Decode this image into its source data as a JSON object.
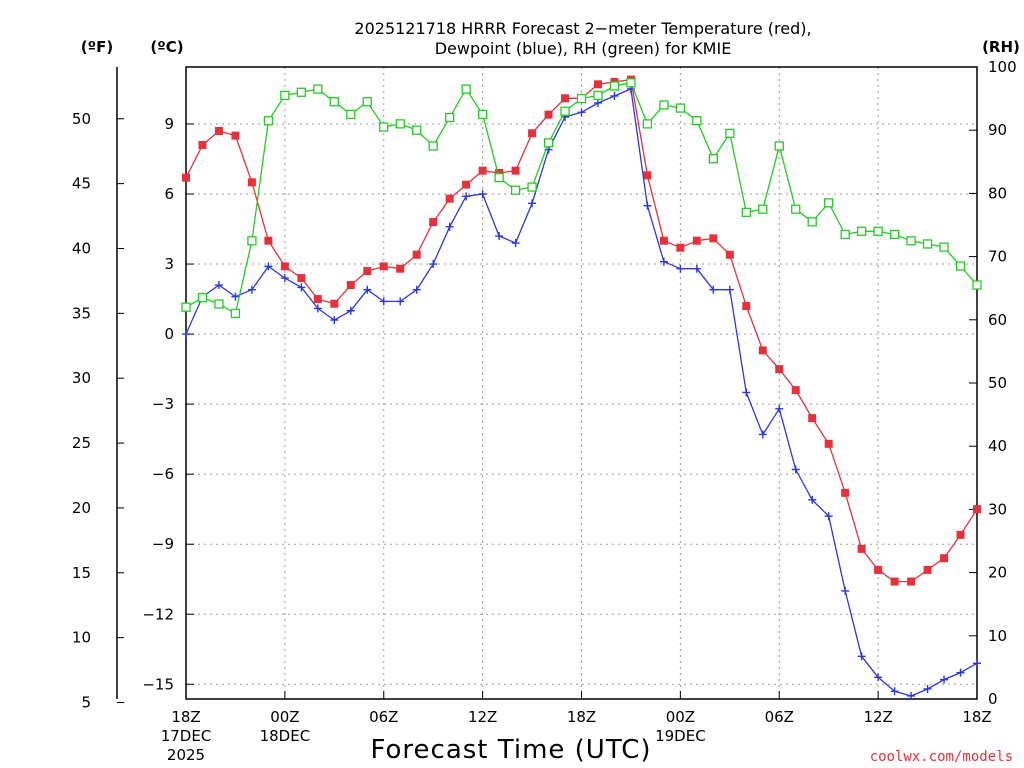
{
  "chart_data": {
    "type": "line",
    "title_lines": [
      "2025121718 HRRR Forecast 2−meter Temperature (red),",
      "Dewpoint (blue), RH (green) for KMIE"
    ],
    "xlabel": "Forecast Time (UTC)",
    "left_outer_axis": {
      "unit": "(ºF)",
      "ticks": [
        5,
        10,
        15,
        20,
        25,
        30,
        35,
        40,
        45,
        50
      ],
      "ylim": [
        5.27,
        53.99
      ]
    },
    "left_inner_axis": {
      "unit": "(ºC)",
      "ticks": [
        -15,
        -12,
        -9,
        -6,
        -3,
        0,
        3,
        6,
        9
      ],
      "tick_labels": [
        "−15",
        "−12",
        "−9",
        "−6",
        "−3",
        "0",
        "3",
        "6",
        "9"
      ],
      "ylim": [
        -15.63,
        11.44
      ]
    },
    "right_axis": {
      "unit": "(RH)",
      "ticks": [
        0,
        10,
        20,
        30,
        40,
        50,
        60,
        70,
        80,
        90,
        100
      ],
      "ylim": [
        0,
        100
      ]
    },
    "x_range_hours": [
      0,
      48
    ],
    "x_ticks": [
      {
        "hour": 0,
        "lines": [
          "18Z",
          "17DEC",
          "2025"
        ]
      },
      {
        "hour": 6,
        "lines": [
          "00Z",
          "18DEC"
        ]
      },
      {
        "hour": 12,
        "lines": [
          "06Z"
        ]
      },
      {
        "hour": 18,
        "lines": [
          "12Z"
        ]
      },
      {
        "hour": 24,
        "lines": [
          "18Z"
        ]
      },
      {
        "hour": 30,
        "lines": [
          "00Z",
          "19DEC"
        ]
      },
      {
        "hour": 36,
        "lines": [
          "06Z"
        ]
      },
      {
        "hour": 42,
        "lines": [
          "12Z"
        ]
      },
      {
        "hour": 48,
        "lines": [
          "18Z"
        ]
      }
    ],
    "grid": true,
    "series": [
      {
        "name": "Temperature",
        "axis": "celsius",
        "color": "#e8303a",
        "marker": "filled-square",
        "values": [
          6.7,
          8.1,
          8.7,
          8.5,
          6.5,
          4.0,
          2.9,
          2.4,
          1.5,
          1.3,
          2.1,
          2.7,
          2.9,
          2.8,
          3.4,
          4.8,
          5.8,
          6.4,
          7.0,
          6.9,
          7.0,
          8.6,
          9.4,
          10.1,
          10.1,
          10.7,
          10.8,
          10.9,
          6.8,
          4.0,
          3.7,
          4.0,
          4.1,
          3.4,
          1.2,
          -0.7,
          -1.5,
          -2.4,
          -3.6,
          -4.7,
          -6.8,
          -9.2,
          -10.1,
          -10.6,
          -10.6,
          -10.1,
          -9.6,
          -8.6,
          -7.5
        ]
      },
      {
        "name": "Dewpoint",
        "axis": "celsius",
        "color": "#2b36e8",
        "marker": "plus",
        "values": [
          0.0,
          1.6,
          2.1,
          1.6,
          1.9,
          2.9,
          2.4,
          2.0,
          1.1,
          0.6,
          1.0,
          1.9,
          1.4,
          1.4,
          1.9,
          3.0,
          4.6,
          5.9,
          6.0,
          4.2,
          3.9,
          5.6,
          7.9,
          9.3,
          9.5,
          9.9,
          10.2,
          10.5,
          5.5,
          3.1,
          2.8,
          2.8,
          1.9,
          1.9,
          -2.5,
          -4.3,
          -3.2,
          -5.8,
          -7.1,
          -7.8,
          -11.0,
          -13.8,
          -14.7,
          -15.3,
          -15.5,
          -15.2,
          -14.8,
          -14.5,
          -14.1
        ]
      },
      {
        "name": "RH",
        "axis": "rh",
        "color": "#22cc22",
        "marker": "open-square",
        "values": [
          62,
          63.5,
          62.5,
          61,
          72.5,
          91.5,
          95.5,
          96,
          96.5,
          94.5,
          92.5,
          94.5,
          90.5,
          91,
          90,
          87.5,
          92,
          96.5,
          92.5,
          82.5,
          80.5,
          81,
          88,
          93,
          95,
          95.5,
          97,
          97.5,
          91,
          94,
          93.5,
          91.5,
          85.5,
          89.5,
          77,
          77.5,
          87.5,
          77.5,
          75.5,
          78.5,
          73.5,
          74,
          74,
          73.5,
          72.5,
          72,
          71.5,
          68.5,
          65.5
        ]
      }
    ]
  },
  "footer": {
    "credit": "coolwx.com/models"
  },
  "colors": {
    "temperature": "#e8303a",
    "dewpoint": "#2b36e8",
    "rh": "#22cc22",
    "grid": "#9a9a9a",
    "frame": "#000000"
  }
}
